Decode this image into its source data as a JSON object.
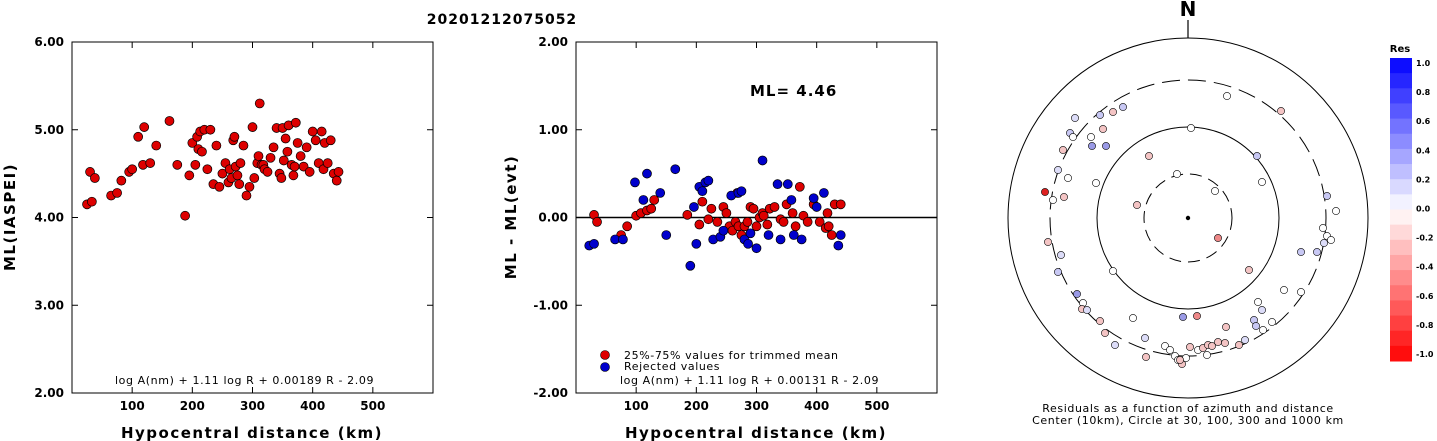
{
  "title": "20201212075052",
  "chart_data": [
    {
      "type": "scatter",
      "xlabel": "Hypocentral distance (km)",
      "ylabel": "ML(IASPEI)",
      "xlim": [
        0,
        600
      ],
      "ylim": [
        2.0,
        6.0
      ],
      "xticks": [
        "100",
        "200",
        "300",
        "400",
        "500"
      ],
      "yticks": [
        "2.00",
        "3.00",
        "4.00",
        "5.00",
        "6.00"
      ],
      "formula": "log A(nm) + 1.11 log R + 0.00189 R - 2.09",
      "series": [
        {
          "color": "#dd0000",
          "x": [
            25,
            30,
            33,
            38,
            65,
            75,
            82,
            95,
            100,
            110,
            118,
            120,
            130,
            140,
            162,
            175,
            188,
            195,
            200,
            205,
            208,
            210,
            213,
            216,
            220,
            225,
            230,
            235,
            240,
            245,
            250,
            255,
            260,
            262,
            265,
            268,
            270,
            272,
            275,
            278,
            280,
            285,
            290,
            295,
            300,
            303,
            308,
            310,
            312,
            315,
            318,
            320,
            325,
            330,
            335,
            340,
            345,
            348,
            350,
            352,
            355,
            358,
            360,
            365,
            368,
            370,
            372,
            375,
            380,
            385,
            390,
            395,
            400,
            405,
            410,
            415,
            418,
            420,
            425,
            430,
            435,
            440,
            443
          ],
          "y": [
            4.15,
            4.52,
            4.18,
            4.45,
            4.25,
            4.28,
            4.42,
            4.52,
            4.55,
            4.92,
            4.6,
            5.03,
            4.62,
            4.82,
            5.1,
            4.6,
            4.02,
            4.48,
            4.85,
            4.6,
            4.92,
            4.78,
            4.98,
            4.75,
            5.0,
            4.55,
            5.0,
            4.38,
            4.82,
            4.35,
            4.5,
            4.62,
            4.4,
            4.55,
            4.45,
            4.88,
            4.92,
            4.58,
            4.48,
            4.38,
            4.62,
            4.82,
            4.25,
            4.35,
            5.03,
            4.45,
            4.62,
            4.7,
            5.3,
            4.6,
            4.6,
            4.55,
            4.52,
            4.68,
            4.8,
            5.02,
            4.5,
            4.45,
            5.02,
            4.65,
            4.9,
            4.75,
            5.05,
            4.6,
            4.48,
            4.58,
            5.08,
            4.85,
            4.7,
            4.58,
            4.8,
            4.52,
            4.98,
            4.88,
            4.62,
            4.98,
            4.55,
            4.85,
            4.62,
            4.88,
            4.5,
            4.42,
            4.52
          ]
        }
      ]
    },
    {
      "type": "scatter",
      "xlabel": "Hypocentral distance (km)",
      "ylabel": "ML - ML(evt)",
      "xlim": [
        0,
        600
      ],
      "ylim": [
        -2.0,
        2.0
      ],
      "xticks": [
        "100",
        "200",
        "300",
        "400",
        "500"
      ],
      "yticks": [
        "-2.00",
        "-1.00",
        "0.00",
        "1.00",
        "2.00"
      ],
      "ml_label": "ML= 4.46",
      "formula": "log A(nm) + 1.11 log R + 0.00131 R - 2.09",
      "legend": [
        "25%-75% values for trimmed mean",
        "Rejected values"
      ],
      "series": [
        {
          "name": "25%-75% values for trimmed mean",
          "color": "#dd0000",
          "x": [
            30,
            35,
            75,
            85,
            100,
            108,
            118,
            125,
            130,
            185,
            205,
            210,
            220,
            225,
            235,
            245,
            250,
            255,
            260,
            265,
            268,
            270,
            275,
            280,
            285,
            290,
            295,
            300,
            305,
            310,
            312,
            318,
            322,
            330,
            340,
            345,
            350,
            360,
            365,
            372,
            378,
            385,
            395,
            405,
            415,
            418,
            420,
            425,
            430,
            440
          ],
          "y": [
            0.03,
            -0.05,
            -0.2,
            -0.1,
            0.02,
            0.05,
            0.08,
            0.1,
            0.2,
            0.03,
            -0.08,
            0.18,
            -0.02,
            0.1,
            -0.05,
            0.12,
            0.05,
            -0.1,
            -0.15,
            -0.05,
            0.28,
            -0.1,
            -0.2,
            -0.1,
            -0.05,
            0.12,
            0.1,
            -0.1,
            0.0,
            0.05,
            0.02,
            -0.08,
            0.1,
            0.12,
            -0.02,
            -0.05,
            0.15,
            0.05,
            -0.1,
            0.35,
            0.02,
            -0.05,
            0.15,
            -0.05,
            -0.12,
            0.05,
            -0.1,
            -0.2,
            0.15,
            0.15
          ]
        },
        {
          "name": "Rejected values",
          "color": "#0000cc",
          "x": [
            22,
            30,
            65,
            78,
            98,
            112,
            118,
            140,
            150,
            165,
            190,
            196,
            200,
            205,
            210,
            215,
            220,
            228,
            240,
            245,
            258,
            270,
            275,
            280,
            286,
            290,
            300,
            310,
            320,
            335,
            340,
            352,
            358,
            362,
            375,
            395,
            400,
            412,
            436,
            440
          ],
          "y": [
            -0.32,
            -0.3,
            -0.25,
            -0.25,
            0.4,
            0.2,
            0.5,
            0.28,
            -0.2,
            0.55,
            -0.55,
            0.12,
            -0.3,
            0.35,
            0.3,
            0.4,
            0.42,
            -0.25,
            -0.22,
            -0.15,
            0.25,
            0.28,
            0.3,
            -0.25,
            -0.3,
            -0.18,
            -0.35,
            0.65,
            -0.2,
            0.38,
            -0.25,
            0.38,
            0.2,
            -0.2,
            -0.25,
            0.22,
            0.12,
            0.28,
            -0.32,
            -0.2
          ]
        }
      ]
    }
  ],
  "polar": {
    "north_label": "N",
    "caption_line1": "Residuals as a function of azimuth and distance",
    "caption_line2": "Center (10km), Circle at 30, 100, 300 and 1000 km"
  },
  "colorbar": {
    "title": "Res",
    "labels": [
      "1.0",
      "0.8",
      "0.6",
      "0.4",
      "0.2",
      "0.0",
      "-0.2",
      "-0.4",
      "-0.6",
      "-0.8",
      "-1.0"
    ]
  }
}
